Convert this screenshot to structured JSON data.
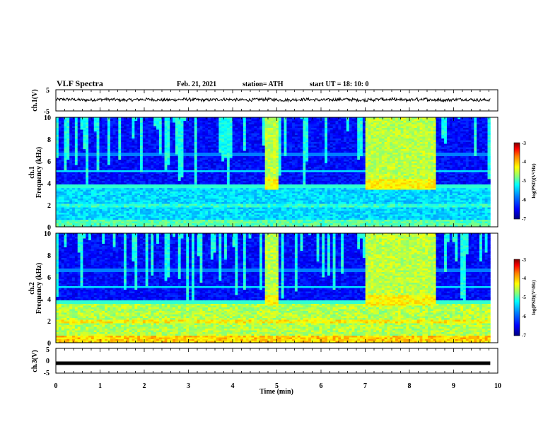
{
  "header": {
    "title": "VLF Spectra",
    "date": "Feb. 21, 2021",
    "station": "station= ATH",
    "start": "start  UT =   18: 10: 0"
  },
  "chart_data": [
    {
      "type": "line",
      "name": "ch1-waveform",
      "ylabel": "ch.1(V)",
      "ylim": [
        -5,
        5
      ],
      "yticks": [
        "5",
        "-5"
      ],
      "xlim": [
        0,
        10
      ],
      "baseline": 0.3,
      "line_color": "#000000"
    },
    {
      "type": "heatmap",
      "name": "ch1-spectrogram",
      "ylabel_line1": "ch.1",
      "ylabel_line2": "Frequency  (kHz)",
      "ylim": [
        0,
        10
      ],
      "yticks": [
        "10",
        "8",
        "6",
        "4",
        "2",
        "0"
      ],
      "data_xlim": [
        0,
        9.83
      ],
      "active_segments": [
        [
          4.75,
          5.05
        ],
        [
          7.0,
          8.6
        ]
      ],
      "band_edge_khz": 3.5,
      "colorbar": {
        "label": "log(PSD)(V²/Hz)",
        "ticks": [
          "-3",
          "-4",
          "-5",
          "-6",
          "-7"
        ],
        "range": [
          -7,
          -3
        ]
      }
    },
    {
      "type": "heatmap",
      "name": "ch2-spectrogram",
      "ylabel_line1": "ch.2",
      "ylabel_line2": "Frequency  (kHz)",
      "ylim": [
        0,
        10
      ],
      "yticks": [
        "10",
        "8",
        "6",
        "4",
        "2",
        "0"
      ],
      "data_xlim": [
        0,
        9.83
      ],
      "active_segments": [
        [
          4.75,
          5.05
        ],
        [
          7.0,
          8.6
        ]
      ],
      "band_edge_khz": 3.5,
      "colorbar": {
        "label": "log(PSD)(V²/Hz)",
        "ticks": [
          "-3",
          "-4",
          "-5",
          "-6",
          "-7"
        ],
        "range": [
          -7,
          -3
        ]
      }
    },
    {
      "type": "line",
      "name": "ch3-waveform",
      "ylabel": "ch.3(V)",
      "ylim": [
        -5,
        5
      ],
      "yticks": [
        "5",
        "0",
        "-5"
      ],
      "xlim": [
        0,
        10
      ],
      "xlabel": "Time  (min)",
      "xticks": [
        "0",
        "1",
        "2",
        "3",
        "4",
        "5",
        "6",
        "7",
        "8",
        "9",
        "10"
      ],
      "baseline": -1.0,
      "line_color": "#000000"
    }
  ],
  "colors": {
    "colormap": [
      "#00007f",
      "#0000ff",
      "#007fff",
      "#00ffff",
      "#7fff7f",
      "#ffff00",
      "#ff7f00",
      "#ff0000",
      "#7f0000"
    ]
  }
}
